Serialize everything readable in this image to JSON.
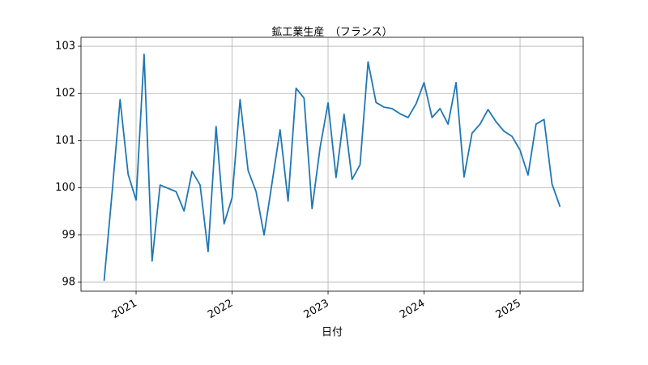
{
  "chart_data": {
    "type": "line",
    "title": "鉱工業生産　（フランス）",
    "xlabel": "日付",
    "x": [
      2020.6667,
      2020.75,
      2020.8333,
      2020.9167,
      2021,
      2021.0833,
      2021.1667,
      2021.25,
      2021.3333,
      2021.4167,
      2021.5,
      2021.5833,
      2021.6667,
      2021.75,
      2021.8333,
      2021.9167,
      2022,
      2022.0833,
      2022.1667,
      2022.25,
      2022.3333,
      2022.4167,
      2022.5,
      2022.5833,
      2022.6667,
      2022.75,
      2022.8333,
      2022.9167,
      2023,
      2023.0833,
      2023.1667,
      2023.25,
      2023.3333,
      2023.4167,
      2023.5,
      2023.5833,
      2023.6667,
      2023.75,
      2023.8333,
      2023.9167,
      2024,
      2024.0833,
      2024.1667,
      2024.25,
      2024.3333,
      2024.4167,
      2024.5,
      2024.5833,
      2024.6667,
      2024.75,
      2024.8333,
      2024.9167,
      2025,
      2025.0833,
      2025.1667,
      2025.25,
      2025.3333,
      2025.4167
    ],
    "values": [
      98.03,
      99.9,
      101.87,
      100.29,
      99.74,
      102.83,
      98.45,
      100.06,
      99.99,
      99.92,
      99.51,
      100.35,
      100.06,
      98.65,
      101.3,
      99.24,
      99.79,
      101.87,
      100.37,
      99.92,
      99.0,
      100.11,
      101.23,
      99.72,
      102.11,
      101.9,
      99.56,
      100.85,
      101.8,
      100.22,
      101.56,
      100.18,
      100.49,
      102.67,
      101.81,
      101.71,
      101.68,
      101.57,
      101.49,
      101.78,
      102.23,
      101.49,
      101.68,
      101.35,
      102.23,
      100.23,
      101.16,
      101.35,
      101.66,
      101.4,
      101.2,
      101.09,
      100.8,
      100.27,
      101.35,
      101.45,
      100.08,
      99.6
    ],
    "color": "#1f77b4",
    "xlim": [
      2020.426,
      2025.658
    ],
    "xticks": [
      2021,
      2022,
      2023,
      2024,
      2025
    ],
    "ylim": [
      97.81,
      103.19
    ],
    "yticks": [
      98,
      99,
      100,
      101,
      102,
      103
    ],
    "grid": true
  }
}
